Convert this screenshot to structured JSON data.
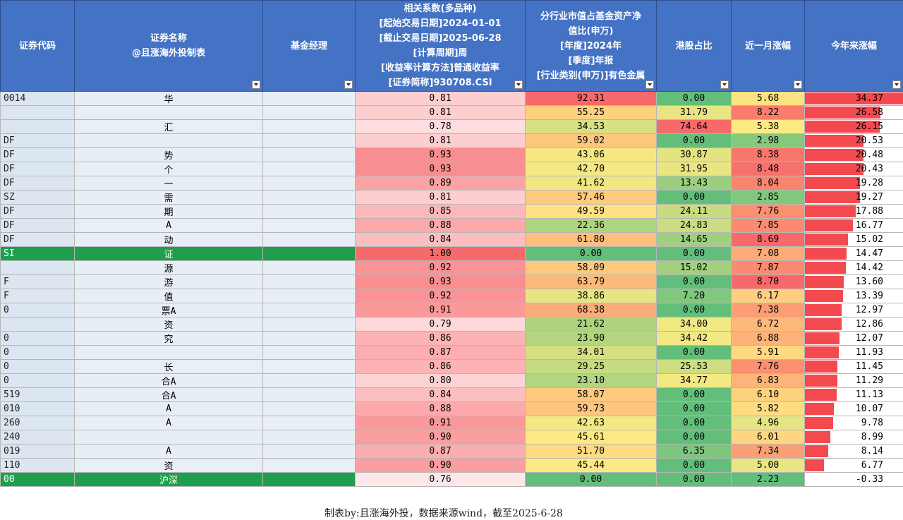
{
  "headers": {
    "code": "证券代码",
    "name_line1": "证券名称",
    "name_line2": "@且涨海外投制表",
    "manager": "基金经理",
    "corr": [
      "相关系数(多品种)",
      "[起始交易日期]2024-01-01",
      "[截止交易日期]2025-06-28",
      "[计算周期]周",
      "[收益率计算方法]普通收益率",
      "[证券简称]930708.CSI"
    ],
    "industry": [
      "分行业市值占基金资产净",
      "值比(申万)",
      "[年度]2024年",
      "[季度]年报",
      "[行业类别(申万)]有色金属"
    ],
    "hk": "港股占比",
    "month": "近一月涨幅",
    "ytd": "今年来涨幅"
  },
  "rows": [
    {
      "code": "0014",
      "name": "华",
      "corr": "0.81",
      "ind": "92.31",
      "hk": "0.00",
      "mon": "5.68",
      "ytd": "34.37",
      "ytdv": 34.37,
      "idx": false
    },
    {
      "code": "",
      "name": "",
      "corr": "0.81",
      "ind": "55.25",
      "hk": "31.79",
      "mon": "8.22",
      "ytd": "26.58",
      "ytdv": 26.58,
      "idx": false
    },
    {
      "code": "",
      "name": "汇",
      "corr": "0.78",
      "ind": "34.53",
      "hk": "74.64",
      "mon": "5.38",
      "ytd": "26.15",
      "ytdv": 26.15,
      "idx": false
    },
    {
      "code": "DF",
      "name": "",
      "corr": "0.81",
      "ind": "59.02",
      "hk": "0.00",
      "mon": "2.98",
      "ytd": "20.53",
      "ytdv": 20.53,
      "idx": false
    },
    {
      "code": "DF",
      "name": "势",
      "corr": "0.93",
      "ind": "43.06",
      "hk": "30.87",
      "mon": "8.38",
      "ytd": "20.48",
      "ytdv": 20.48,
      "idx": false
    },
    {
      "code": "DF",
      "name": "个",
      "corr": "0.93",
      "ind": "42.70",
      "hk": "31.95",
      "mon": "8.48",
      "ytd": "20.43",
      "ytdv": 20.43,
      "idx": false
    },
    {
      "code": "DF",
      "name": "一",
      "corr": "0.89",
      "ind": "41.62",
      "hk": "13.43",
      "mon": "8.04",
      "ytd": "19.28",
      "ytdv": 19.28,
      "idx": false
    },
    {
      "code": "SZ",
      "name": "需",
      "corr": "0.81",
      "ind": "57.46",
      "hk": "0.00",
      "mon": "2.85",
      "ytd": "19.27",
      "ytdv": 19.27,
      "idx": false
    },
    {
      "code": "DF",
      "name": "期",
      "corr": "0.85",
      "ind": "49.59",
      "hk": "24.11",
      "mon": "7.76",
      "ytd": "17.88",
      "ytdv": 17.88,
      "idx": false
    },
    {
      "code": "DF",
      "name": "A",
      "corr": "0.88",
      "ind": "22.36",
      "hk": "24.83",
      "mon": "7.85",
      "ytd": "16.77",
      "ytdv": 16.77,
      "idx": false
    },
    {
      "code": "DF",
      "name": "动",
      "corr": "0.84",
      "ind": "61.80",
      "hk": "14.65",
      "mon": "8.69",
      "ytd": "15.02",
      "ytdv": 15.02,
      "idx": false
    },
    {
      "code": "SI",
      "name": "证",
      "corr": "1.00",
      "ind": "0.00",
      "hk": "0.00",
      "mon": "7.08",
      "ytd": "14.47",
      "ytdv": 14.47,
      "idx": true
    },
    {
      "code": "",
      "name": "源",
      "corr": "0.92",
      "ind": "58.09",
      "hk": "15.02",
      "mon": "7.87",
      "ytd": "14.42",
      "ytdv": 14.42,
      "idx": false
    },
    {
      "code": "F",
      "name": "游",
      "corr": "0.93",
      "ind": "63.79",
      "hk": "0.00",
      "mon": "8.70",
      "ytd": "13.60",
      "ytdv": 13.6,
      "idx": false
    },
    {
      "code": "F",
      "name": "值",
      "corr": "0.92",
      "ind": "38.86",
      "hk": "7.20",
      "mon": "6.17",
      "ytd": "13.39",
      "ytdv": 13.39,
      "idx": false
    },
    {
      "code": "0",
      "name": "票A",
      "corr": "0.91",
      "ind": "68.38",
      "hk": "0.00",
      "mon": "7.38",
      "ytd": "12.97",
      "ytdv": 12.97,
      "idx": false
    },
    {
      "code": "",
      "name": "资",
      "corr": "0.79",
      "ind": "21.62",
      "hk": "34.00",
      "mon": "6.72",
      "ytd": "12.86",
      "ytdv": 12.86,
      "idx": false
    },
    {
      "code": "0",
      "name": "究",
      "corr": "0.86",
      "ind": "23.90",
      "hk": "34.42",
      "mon": "6.88",
      "ytd": "12.07",
      "ytdv": 12.07,
      "idx": false
    },
    {
      "code": "0",
      "name": "",
      "corr": "0.87",
      "ind": "34.01",
      "hk": "0.00",
      "mon": "5.91",
      "ytd": "11.93",
      "ytdv": 11.93,
      "idx": false
    },
    {
      "code": "0",
      "name": "长",
      "corr": "0.86",
      "ind": "29.25",
      "hk": "25.53",
      "mon": "7.76",
      "ytd": "11.45",
      "ytdv": 11.45,
      "idx": false
    },
    {
      "code": "0",
      "name": "合A",
      "corr": "0.80",
      "ind": "23.10",
      "hk": "34.77",
      "mon": "6.83",
      "ytd": "11.29",
      "ytdv": 11.29,
      "idx": false
    },
    {
      "code": "519",
      "name": "合A",
      "corr": "0.84",
      "ind": "58.07",
      "hk": "0.00",
      "mon": "6.10",
      "ytd": "11.13",
      "ytdv": 11.13,
      "idx": false
    },
    {
      "code": "010",
      "name": "A",
      "corr": "0.88",
      "ind": "59.73",
      "hk": "0.00",
      "mon": "5.82",
      "ytd": "10.07",
      "ytdv": 10.07,
      "idx": false
    },
    {
      "code": "260",
      "name": "A",
      "corr": "0.91",
      "ind": "42.63",
      "hk": "0.00",
      "mon": "4.96",
      "ytd": "9.78",
      "ytdv": 9.78,
      "idx": false
    },
    {
      "code": "240",
      "name": "",
      "corr": "0.90",
      "ind": "45.61",
      "hk": "0.00",
      "mon": "6.01",
      "ytd": "8.99",
      "ytdv": 8.99,
      "idx": false
    },
    {
      "code": "019",
      "name": "A",
      "corr": "0.87",
      "ind": "51.70",
      "hk": "6.35",
      "mon": "7.34",
      "ytd": "8.14",
      "ytdv": 8.14,
      "idx": false
    },
    {
      "code": "110",
      "name": "资",
      "corr": "0.90",
      "ind": "45.44",
      "hk": "0.00",
      "mon": "5.00",
      "ytd": "6.77",
      "ytdv": 6.77,
      "idx": false
    },
    {
      "code": "00",
      "name": "沪深",
      "corr": "0.76",
      "ind": "0.00",
      "hk": "0.00",
      "mon": "2.23",
      "ytd": "-0.33",
      "ytdv": -0.33,
      "idx": true
    }
  ],
  "footer": "制表by:且涨海外投，数据来源wind，截至2025-6-28",
  "colors": {
    "header": "#4472c4",
    "red": "#f8696b",
    "yellow": "#ffeb84",
    "green": "#63be7b",
    "index_row": "#1f9f4e"
  }
}
